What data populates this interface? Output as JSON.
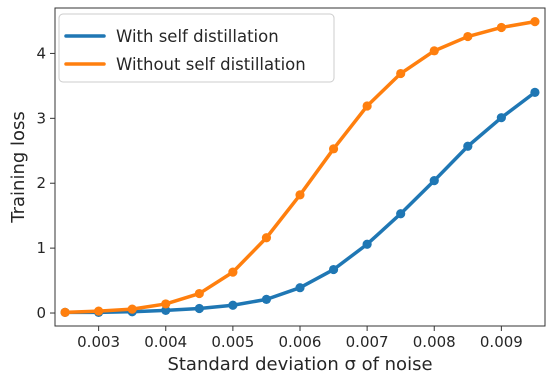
{
  "chart_data": {
    "type": "line",
    "xlabel": "Standard deviation σ of noise",
    "ylabel": "Training loss",
    "xlim": [
      0.00235,
      0.00965
    ],
    "ylim": [
      -0.2,
      4.7
    ],
    "xticks": [
      0.003,
      0.004,
      0.005,
      0.006,
      0.007,
      0.008,
      0.009
    ],
    "xtick_labels": [
      "0.003",
      "0.004",
      "0.005",
      "0.006",
      "0.007",
      "0.008",
      "0.009"
    ],
    "yticks": [
      0,
      1,
      2,
      3,
      4
    ],
    "ytick_labels": [
      "0",
      "1",
      "2",
      "3",
      "4"
    ],
    "grid": false,
    "legend": "top-left",
    "x": [
      0.0025,
      0.003,
      0.0035,
      0.004,
      0.0045,
      0.005,
      0.0055,
      0.006,
      0.0065,
      0.007,
      0.0075,
      0.008,
      0.0085,
      0.009,
      0.0095
    ],
    "series": [
      {
        "name": "With self distillation",
        "color": "#1f77b4",
        "values": [
          0.01,
          0.01,
          0.02,
          0.04,
          0.07,
          0.12,
          0.21,
          0.39,
          0.67,
          1.06,
          1.53,
          2.04,
          2.57,
          3.01,
          3.4
        ]
      },
      {
        "name": "Without self distillation",
        "color": "#ff7f0e",
        "values": [
          0.01,
          0.03,
          0.06,
          0.14,
          0.3,
          0.63,
          1.16,
          1.82,
          2.53,
          3.19,
          3.69,
          4.04,
          4.26,
          4.4,
          4.49
        ]
      }
    ]
  }
}
